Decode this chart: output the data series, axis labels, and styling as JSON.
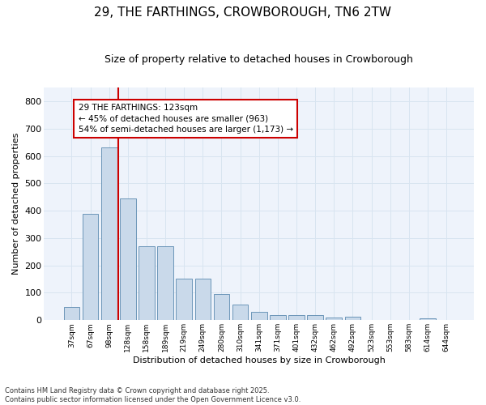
{
  "title1": "29, THE FARTHINGS, CROWBOROUGH, TN6 2TW",
  "title2": "Size of property relative to detached houses in Crowborough",
  "xlabel": "Distribution of detached houses by size in Crowborough",
  "ylabel": "Number of detached properties",
  "categories": [
    "37sqm",
    "67sqm",
    "98sqm",
    "128sqm",
    "158sqm",
    "189sqm",
    "219sqm",
    "249sqm",
    "280sqm",
    "310sqm",
    "341sqm",
    "371sqm",
    "401sqm",
    "432sqm",
    "462sqm",
    "492sqm",
    "523sqm",
    "553sqm",
    "583sqm",
    "614sqm",
    "644sqm"
  ],
  "values": [
    48,
    390,
    630,
    445,
    270,
    270,
    153,
    153,
    96,
    57,
    30,
    20,
    18,
    18,
    11,
    12,
    1,
    0,
    0,
    8,
    0
  ],
  "bar_color": "#c9d9ea",
  "bar_edge_color": "#5a8ab0",
  "vline_color": "#cc0000",
  "annotation_text": "29 THE FARTHINGS: 123sqm\n← 45% of detached houses are smaller (963)\n54% of semi-detached houses are larger (1,173) →",
  "annotation_box_edge_color": "#cc0000",
  "grid_color": "#d8e4f0",
  "background_color": "#eef3fb",
  "footer": "Contains HM Land Registry data © Crown copyright and database right 2025.\nContains public sector information licensed under the Open Government Licence v3.0.",
  "ylim": [
    0,
    850
  ],
  "yticks": [
    0,
    100,
    200,
    300,
    400,
    500,
    600,
    700,
    800
  ]
}
